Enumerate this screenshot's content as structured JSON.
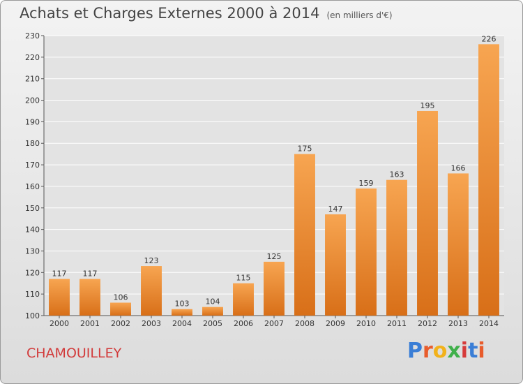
{
  "page": {
    "title": "Achats et Charges Externes 2000 à 2014",
    "unit": "(en milliers d'€)",
    "commune": "CHAMOUILLEY",
    "brand": "Proxiti"
  },
  "colors": {
    "bar_light": "#f7a551",
    "bar_dark": "#d86f18",
    "grid": "#ffffff",
    "commune": "#d23a3a"
  },
  "chart_data": {
    "type": "bar",
    "title": "Achats et Charges Externes 2000 à 2014",
    "subtitle": "(en milliers d'€)",
    "xlabel": "",
    "ylabel": "",
    "categories": [
      "2000",
      "2001",
      "2002",
      "2003",
      "2004",
      "2005",
      "2006",
      "2007",
      "2008",
      "2009",
      "2010",
      "2011",
      "2012",
      "2013",
      "2014"
    ],
    "values": [
      117,
      117,
      106,
      123,
      103,
      104,
      115,
      125,
      175,
      147,
      159,
      163,
      195,
      166,
      226
    ],
    "ylim": [
      100,
      230
    ],
    "yticks": [
      100,
      110,
      120,
      130,
      140,
      150,
      160,
      170,
      180,
      190,
      200,
      210,
      220,
      230
    ],
    "grid": true,
    "legend": "none"
  }
}
